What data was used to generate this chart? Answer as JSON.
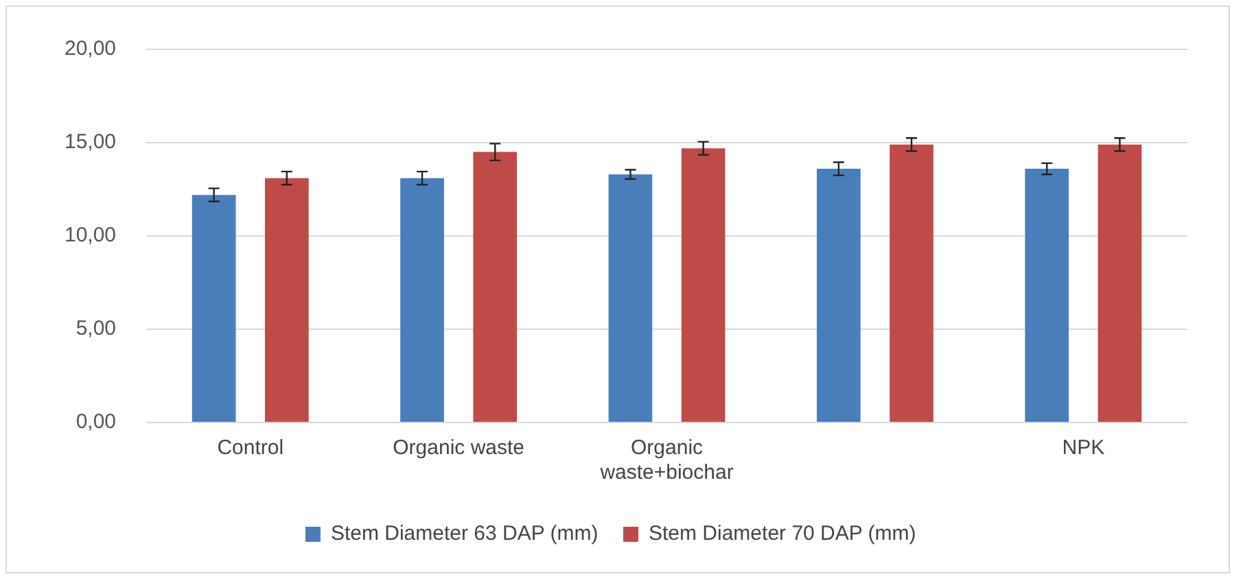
{
  "chart_data": {
    "type": "bar",
    "categories": [
      "Control",
      "Organic waste",
      "Organic waste+biochar",
      null,
      "NPK"
    ],
    "series": [
      {
        "name": "Stem Diameter 63 DAP (mm)",
        "color": "#4a7ebb",
        "values": [
          12.2,
          13.1,
          13.3,
          13.6,
          13.6
        ],
        "errors": [
          0.35,
          0.35,
          0.25,
          0.35,
          0.3
        ]
      },
      {
        "name": "Stem Diameter 70 DAP (mm)",
        "color": "#be4b48",
        "values": [
          13.1,
          14.5,
          14.7,
          14.9,
          14.9
        ],
        "errors": [
          0.35,
          0.45,
          0.35,
          0.35,
          0.35
        ]
      }
    ],
    "ylim": [
      0,
      20
    ],
    "yticks": [
      {
        "value": 0,
        "label": "0,00"
      },
      {
        "value": 5,
        "label": "5,00"
      },
      {
        "value": 10,
        "label": "10,00"
      },
      {
        "value": 15,
        "label": "15,00"
      },
      {
        "value": 20,
        "label": "20,00"
      }
    ],
    "grid": "y",
    "legend": "bottom"
  }
}
